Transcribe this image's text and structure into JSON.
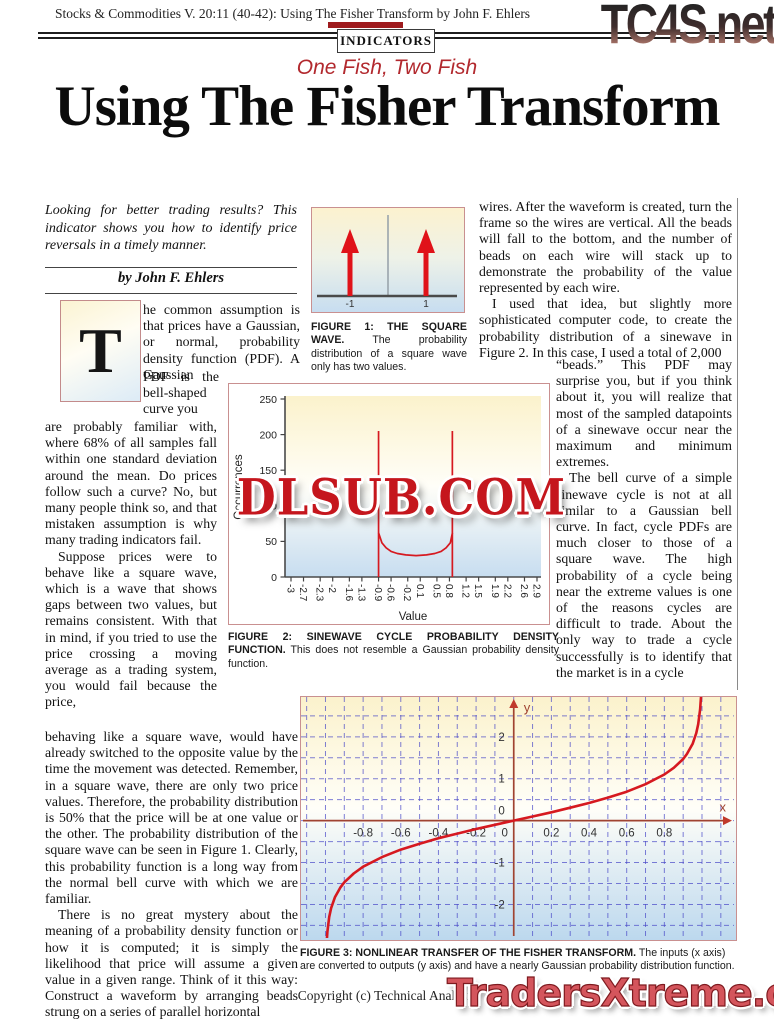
{
  "page": {
    "header_citation": "Stocks & Commodities V. 20:11 (40-42): Using The Fisher Transform by John F. Ehlers",
    "watermark_top": "TC4S.net",
    "watermark_middle": "DLSUB.COM",
    "watermark_footer": "TradersXtreme.com",
    "footer_copyright": "Copyright (c) Technical Analysis",
    "section_badge": "INDICATORS",
    "kicker": "One Fish, Two Fish",
    "title": "Using The Fisher Transform"
  },
  "colors": {
    "accent_red": "#d61920",
    "badge_red": "#9e1b1e",
    "kicker_red": "#b2292e",
    "figure_border_pink": "#c99090",
    "grid_blue": "#4848c8",
    "axis_brown": "#a04331"
  },
  "article": {
    "intro": "Looking for better trading results? This indicator shows you how to identify price reversals in a timely manner.",
    "byline": "by John F. Ehlers",
    "dropcap": "T",
    "left_seg1": "he common assumption is that prices have a Gaussian, or normal, probability density function (PDF). A Gaussian",
    "left_seg2": "PDF is the bell-shaped curve you",
    "left_seg3_p1": "are probably familiar with, where 68% of all samples fall within one standard deviation around the mean. Do prices follow such a curve? No, but many people think so, and that mistaken assumption is why many trading indicators fail.",
    "left_seg3_p2": "Suppose prices were to behave like a square wave, which is a wave that shows gaps between two values, but remains consistent. With that in mind, if you tried to use the price crossing a moving average as a trading system, you would fail because the price,",
    "left_seg4_p1": "behaving like a square wave, would have already switched to the opposite value by the time the movement was detected. Remember, in a square wave, there are only two price values. Therefore, the probability distribution is 50% that the price will be at one value or the other. The probability distribution of the square wave can be seen in Figure 1. Clearly, this probability function is a long way from the normal bell curve with which we are familiar.",
    "left_seg4_p2": "There is no great mystery about the meaning of a probability density function or how it is computed; it is simply the likelihood that price will assume a given value in a given range. Think of it this way: Construct a waveform by arranging beads strung on a series of parallel horizontal",
    "right_seg1_p1": "wires. After the waveform is created, turn the frame so the wires are vertical. All the beads will fall to the bottom, and the number of beads on each wire will stack up to demonstrate the probability of the value represented by each wire.",
    "right_seg1_p2": "I used that idea, but slightly more sophisticated computer code, to create the probability distribution of a sinewave in Figure 2. In this case, I used a total of 2,000",
    "right_seg2_p1": "“beads.” This PDF may surprise you, but if you think about it, you will realize that most of the sampled datapoints of a sinewave occur near the maximum and minimum extremes.",
    "right_seg2_p2": "The bell curve of a simple sinewave cycle is not at all similar to a Gaussian bell curve. In fact, cycle PDFs are much closer to those of a square wave. The high probability of a cycle being near the extreme values is one of the reasons cycles are difficult to trade. About the only way to trade a cycle successfully is to identify that the market is in a cycle"
  },
  "figures": {
    "fig1": {
      "caption_bold": "FIGURE 1: THE SQUARE WAVE.",
      "caption_rest": "The probability distribution of a square wave only has two values."
    },
    "fig2": {
      "caption_bold": "FIGURE 2: SINEWAVE CYCLE PROBABILITY DENSITY FUNCTION.",
      "caption_rest": "This does not resemble a Gaussian probability density function."
    },
    "fig3": {
      "caption_bold": "FIGURE 3: NONLINEAR TRANSFER OF THE FISHER TRANSFORM.",
      "caption_rest": "The inputs (x axis) are converted to outputs (y axis) and have a nearly Gaussian probability distribution function."
    }
  },
  "chart_data": [
    {
      "type": "stem",
      "figure": "FIGURE 1",
      "title": "THE SQUARE WAVE",
      "x": [
        -1,
        1
      ],
      "tick_labels": [
        "-1",
        "1"
      ],
      "note": "two equal probability spikes at -1 and +1"
    },
    {
      "type": "line",
      "figure": "FIGURE 2",
      "title": "SINEWAVE CYCLE PROBABILITY DENSITY FUNCTION",
      "xlabel": "Value",
      "ylabel": "Occurrences",
      "xlim": [
        -3,
        2.9
      ],
      "ylim": [
        0,
        250
      ],
      "x_ticks": [
        -3,
        -2.7,
        -2.3,
        -2,
        -1.6,
        -1.3,
        -0.9,
        -0.6,
        -0.2,
        0.1,
        0.5,
        0.8,
        1.2,
        1.5,
        1.9,
        2.2,
        2.6,
        2.9
      ],
      "y_ticks": [
        0,
        50,
        100,
        150,
        200,
        250
      ],
      "spikes": [
        {
          "x": -0.9,
          "y": 205
        },
        {
          "x": 0.87,
          "y": 205
        }
      ],
      "u_curve": [
        [
          -0.9,
          62
        ],
        [
          -0.82,
          48
        ],
        [
          -0.72,
          41
        ],
        [
          -0.6,
          36
        ],
        [
          -0.45,
          33
        ],
        [
          -0.25,
          31
        ],
        [
          0,
          30
        ],
        [
          0.25,
          31
        ],
        [
          0.45,
          33
        ],
        [
          0.6,
          36
        ],
        [
          0.72,
          41
        ],
        [
          0.82,
          48
        ],
        [
          0.87,
          62
        ]
      ],
      "color": "#d61920"
    },
    {
      "type": "line",
      "figure": "FIGURE 3",
      "title": "NONLINEAR TRANSFER OF THE FISHER TRANSFORM",
      "xlabel": "x",
      "ylabel": "y",
      "xlim": [
        -1.13,
        1.17
      ],
      "ylim": [
        -2.8,
        2.95
      ],
      "x_ticks": [
        -0.8,
        -0.6,
        -0.4,
        -0.2,
        0,
        0.2,
        0.4,
        0.6,
        0.8
      ],
      "y_ticks": [
        -2,
        -1,
        0,
        1,
        2
      ],
      "grid": {
        "x_step": 0.1,
        "y_step": 0.5
      },
      "curve": [
        [
          -0.995,
          -2.99
        ],
        [
          -0.99,
          -2.65
        ],
        [
          -0.98,
          -2.3
        ],
        [
          -0.97,
          -2.09
        ],
        [
          -0.95,
          -1.83
        ],
        [
          -0.92,
          -1.59
        ],
        [
          -0.9,
          -1.47
        ],
        [
          -0.85,
          -1.26
        ],
        [
          -0.8,
          -1.1
        ],
        [
          -0.7,
          -0.87
        ],
        [
          -0.6,
          -0.69
        ],
        [
          -0.5,
          -0.55
        ],
        [
          -0.4,
          -0.42
        ],
        [
          -0.3,
          -0.31
        ],
        [
          -0.2,
          -0.2
        ],
        [
          -0.1,
          -0.1
        ],
        [
          0,
          0
        ],
        [
          0.1,
          0.1
        ],
        [
          0.2,
          0.2
        ],
        [
          0.3,
          0.31
        ],
        [
          0.4,
          0.42
        ],
        [
          0.5,
          0.55
        ],
        [
          0.6,
          0.69
        ],
        [
          0.7,
          0.87
        ],
        [
          0.8,
          1.1
        ],
        [
          0.85,
          1.26
        ],
        [
          0.9,
          1.47
        ],
        [
          0.92,
          1.59
        ],
        [
          0.95,
          1.83
        ],
        [
          0.97,
          2.09
        ],
        [
          0.98,
          2.3
        ],
        [
          0.99,
          2.65
        ],
        [
          0.995,
          2.99
        ]
      ],
      "color": "#d61920",
      "grid_color": "#4848c8",
      "axis_color": "#a04331"
    }
  ]
}
